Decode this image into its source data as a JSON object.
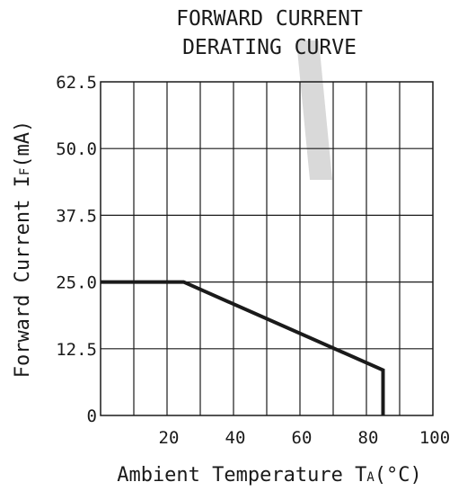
{
  "chart_data": {
    "type": "line",
    "title_lines": [
      "FORWARD CURRENT",
      "DERATING CURVE"
    ],
    "xlabel": {
      "text": "Ambient Temperature T",
      "subscript": "A",
      "units": "(°C)"
    },
    "ylabel": {
      "text": "Forward Current I",
      "subscript": "F",
      "units": "(mA)"
    },
    "xlim": [
      0,
      100
    ],
    "ylim": [
      0,
      62.5
    ],
    "x_ticks": [
      20,
      40,
      60,
      80,
      100
    ],
    "x_tick_labels": [
      "20",
      "40",
      "60",
      "80",
      "100"
    ],
    "y_ticks": [
      0,
      12.5,
      25.0,
      37.5,
      50.0,
      62.5
    ],
    "y_tick_labels": [
      "0",
      "12.5",
      "25.0",
      "37.5",
      "50.0",
      "62.5"
    ],
    "x_grid_step": 10,
    "grid": true,
    "series": [
      {
        "x": [
          0,
          25,
          85,
          85
        ],
        "y": [
          25,
          25,
          8.5,
          0
        ]
      }
    ],
    "colors": {
      "ink": "#1a1a1a",
      "watermark": "#d9d9d9"
    }
  }
}
